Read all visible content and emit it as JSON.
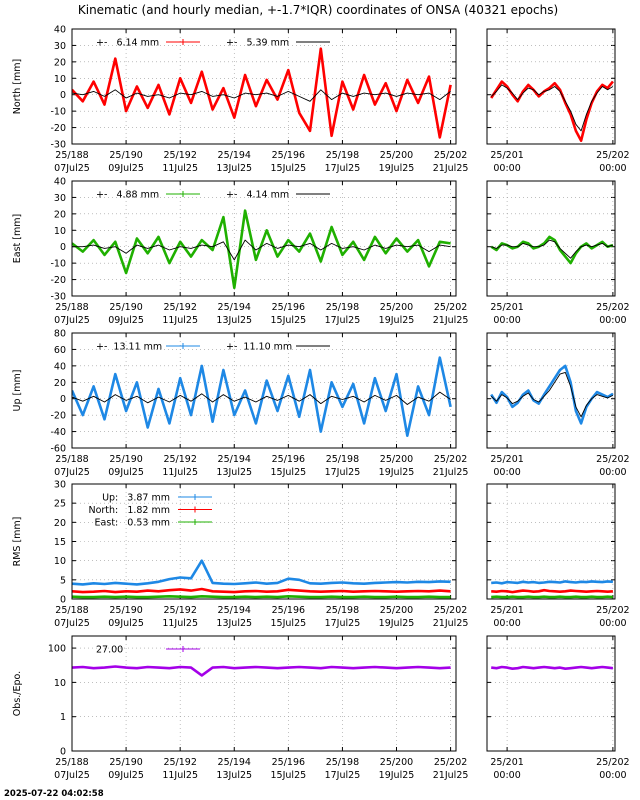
{
  "title": "Kinematic (and hourly median, +-1.7*IQR) coordinates of ONSA (40321 epochs)",
  "footer": "2025-07-22 04:02:58",
  "chart_data": {
    "type": "line",
    "grid": true,
    "x": [
      188,
      188.4,
      188.8,
      189.2,
      189.6,
      190,
      190.4,
      190.8,
      191.2,
      191.6,
      192,
      192.4,
      192.8,
      193.2,
      193.6,
      194,
      194.4,
      194.8,
      195.2,
      195.6,
      196,
      196.4,
      196.8,
      197.2,
      197.6,
      198,
      198.4,
      198.8,
      199.2,
      199.6,
      200,
      200.4,
      200.8,
      201.2,
      201.6,
      202
    ],
    "xlim": [
      188,
      202.2
    ],
    "xticks": [
      {
        "value": 188,
        "label": "25/188",
        "date": "07Jul25"
      },
      {
        "value": 190,
        "label": "25/190",
        "date": "09Jul25"
      },
      {
        "value": 192,
        "label": "25/192",
        "date": "11Jul25"
      },
      {
        "value": 194,
        "label": "25/194",
        "date": "13Jul25"
      },
      {
        "value": 196,
        "label": "25/196",
        "date": "15Jul25"
      },
      {
        "value": 198,
        "label": "25/198",
        "date": "17Jul25"
      },
      {
        "value": 200,
        "label": "25/200",
        "date": "19Jul25"
      },
      {
        "value": 202,
        "label": "25/202",
        "date": "21Jul25"
      }
    ],
    "zoom_x": [
      200.85,
      200.9,
      200.95,
      201,
      201.05,
      201.1,
      201.15,
      201.2,
      201.25,
      201.3,
      201.35,
      201.4,
      201.45,
      201.5,
      201.55,
      201.6,
      201.65,
      201.7,
      201.75,
      201.8,
      201.85,
      201.9,
      201.95,
      202
    ],
    "zoom_xlim": [
      200.81,
      202.02
    ],
    "zoom_xticks": [
      {
        "value": 201,
        "label": "25/201",
        "date": "00:00"
      },
      {
        "value": 202,
        "label": "25/202",
        "date": "00:00"
      }
    ],
    "panels": [
      {
        "ylabel": "North [mm]",
        "ylim": [
          -30,
          40
        ],
        "yticks": [
          -30,
          -20,
          -10,
          0,
          10,
          20,
          30,
          40
        ],
        "series": [
          {
            "name": "+-   6.14 mm",
            "color": "#ff0000",
            "values": [
              3,
              -4,
              8,
              -6,
              22,
              -10,
              5,
              -8,
              6,
              -12,
              10,
              -5,
              14,
              -9,
              4,
              -14,
              12,
              -7,
              9,
              -3,
              15,
              -11,
              -22,
              28,
              -25,
              8,
              -9,
              12,
              -6,
              7,
              -10,
              9,
              -5,
              11,
              -26,
              6
            ],
            "zoom_values": [
              -2,
              3,
              8,
              5,
              0,
              -4,
              2,
              6,
              3,
              -1,
              2,
              4,
              7,
              3,
              -5,
              -12,
              -22,
              -28,
              -15,
              -5,
              2,
              6,
              4,
              8
            ]
          },
          {
            "name": "+-   5.39 mm",
            "color": "#000000",
            "values": [
              1,
              0,
              2,
              -1,
              3,
              -2,
              1,
              -1,
              0,
              -2,
              1,
              0,
              2,
              -1,
              0,
              -2,
              1,
              0,
              1,
              -1,
              2,
              -1,
              -4,
              3,
              -3,
              1,
              -1,
              1,
              0,
              1,
              -1,
              1,
              0,
              1,
              -3,
              2
            ],
            "zoom_values": [
              -1,
              2,
              6,
              4,
              1,
              -3,
              1,
              4,
              3,
              0,
              2,
              3,
              5,
              2,
              -4,
              -10,
              -18,
              -22,
              -12,
              -4,
              1,
              5,
              3,
              5
            ]
          }
        ]
      },
      {
        "ylabel": "East [mm]",
        "ylim": [
          -30,
          40
        ],
        "yticks": [
          -30,
          -20,
          -10,
          0,
          10,
          20,
          30,
          40
        ],
        "series": [
          {
            "name": "+-   4.88 mm",
            "color": "#1fb000",
            "values": [
              2,
              -3,
              4,
              -5,
              3,
              -16,
              5,
              -4,
              6,
              -10,
              3,
              -6,
              4,
              -2,
              18,
              -25,
              22,
              -8,
              10,
              -6,
              4,
              -3,
              8,
              -9,
              12,
              -5,
              3,
              -8,
              6,
              -4,
              5,
              -3,
              4,
              -12,
              3,
              2
            ],
            "zoom_values": [
              0,
              -2,
              2,
              1,
              -1,
              0,
              3,
              2,
              -1,
              0,
              2,
              6,
              4,
              -2,
              -6,
              -10,
              -4,
              0,
              2,
              -1,
              1,
              3,
              0,
              1
            ]
          },
          {
            "name": "+-   4.14 mm",
            "color": "#000000",
            "values": [
              0,
              0,
              1,
              -1,
              0,
              -4,
              1,
              -1,
              1,
              -2,
              0,
              -1,
              1,
              0,
              3,
              -8,
              4,
              -2,
              2,
              -1,
              1,
              0,
              2,
              -2,
              2,
              -1,
              0,
              -2,
              1,
              -1,
              1,
              0,
              1,
              -3,
              1,
              0
            ],
            "zoom_values": [
              0,
              -1,
              1,
              1,
              0,
              0,
              2,
              1,
              0,
              0,
              1,
              4,
              3,
              -1,
              -4,
              -7,
              -3,
              0,
              1,
              0,
              1,
              2,
              0,
              1
            ]
          }
        ]
      },
      {
        "ylabel": "Up [mm]",
        "ylim": [
          -60,
          80
        ],
        "yticks": [
          -60,
          -40,
          -20,
          0,
          20,
          40,
          60,
          80
        ],
        "series": [
          {
            "name": "+-  13.11 mm",
            "color": "#1e88e5",
            "values": [
              10,
              -20,
              15,
              -25,
              30,
              -15,
              20,
              -35,
              12,
              -30,
              25,
              -20,
              40,
              -28,
              35,
              -20,
              10,
              -30,
              22,
              -15,
              28,
              -22,
              35,
              -40,
              20,
              -10,
              18,
              -30,
              25,
              -15,
              30,
              -45,
              15,
              -20,
              50,
              -10
            ],
            "zoom_values": [
              5,
              -5,
              8,
              2,
              -10,
              -5,
              5,
              10,
              -2,
              -6,
              5,
              15,
              25,
              35,
              40,
              20,
              -15,
              -30,
              -10,
              0,
              8,
              5,
              2,
              6
            ]
          },
          {
            "name": "+-  11.10 mm",
            "color": "#000000",
            "values": [
              2,
              -3,
              3,
              -4,
              5,
              -2,
              3,
              -5,
              2,
              -4,
              4,
              -3,
              6,
              -4,
              5,
              -3,
              2,
              -4,
              3,
              -2,
              4,
              -3,
              5,
              -6,
              3,
              -1,
              3,
              -4,
              4,
              -2,
              4,
              -7,
              2,
              -3,
              8,
              -1
            ],
            "zoom_values": [
              3,
              -3,
              5,
              1,
              -6,
              -3,
              3,
              7,
              -1,
              -4,
              3,
              10,
              20,
              30,
              32,
              15,
              -10,
              -22,
              -8,
              0,
              5,
              3,
              1,
              4
            ]
          }
        ]
      },
      {
        "ylabel": "RMS [mm]",
        "ylim": [
          0,
          30
        ],
        "yticks": [
          0,
          5,
          10,
          15,
          20,
          25,
          30
        ],
        "series": [
          {
            "name": "Up:   3.87 mm",
            "color": "#1e88e5",
            "values": [
              4,
              3.8,
              4.1,
              3.9,
              4.2,
              4,
              3.8,
              4.1,
              4.5,
              5.2,
              5.6,
              5.4,
              10,
              4.2,
              4,
              3.9,
              4.1,
              4.3,
              4,
              4.2,
              5.3,
              5,
              4.1,
              4,
              4.2,
              4.3,
              4.1,
              4,
              4.2,
              4.3,
              4.4,
              4.3,
              4.5,
              4.4,
              4.6,
              4.5
            ],
            "zoom_values": [
              4.2,
              4.3,
              4.1,
              4.4,
              4.3,
              4.2,
              4.5,
              4.3,
              4.4,
              4.2,
              4.3,
              4.5,
              4.4,
              4.3,
              4.6,
              4.4,
              4.3,
              4.5,
              4.4,
              4.6,
              4.5,
              4.4,
              4.6,
              4.5
            ]
          },
          {
            "name": "North:   1.82 mm",
            "color": "#ff0000",
            "values": [
              2,
              1.8,
              1.9,
              2.1,
              1.8,
              2,
              1.9,
              2.2,
              2,
              2.3,
              2.5,
              2.2,
              2.6,
              2,
              1.9,
              1.8,
              2,
              2.1,
              1.9,
              2,
              2.4,
              2.2,
              2,
              1.9,
              2,
              2.1,
              1.9,
              2,
              2.1,
              2,
              1.9,
              2,
              2.1,
              2,
              2.2,
              2
            ],
            "zoom_values": [
              2,
              1.9,
              2.1,
              2,
              1.8,
              2,
              2.2,
              2.1,
              1.9,
              2,
              2.3,
              2.1,
              2,
              1.9,
              2,
              2.2,
              2.1,
              2,
              1.9,
              2,
              2.1,
              2,
              1.9,
              2
            ]
          },
          {
            "name": "East:   0.53 mm",
            "color": "#1fb000",
            "values": [
              0.6,
              0.5,
              0.5,
              0.6,
              0.5,
              0.6,
              0.5,
              0.5,
              0.6,
              0.7,
              0.6,
              0.5,
              0.7,
              0.6,
              0.5,
              0.5,
              0.6,
              0.5,
              0.6,
              0.5,
              0.7,
              0.6,
              0.5,
              0.5,
              0.6,
              0.5,
              0.5,
              0.6,
              0.5,
              0.5,
              0.6,
              0.5,
              0.5,
              0.6,
              0.5,
              0.5
            ],
            "zoom_values": [
              0.5,
              0.6,
              0.5,
              0.5,
              0.6,
              0.5,
              0.5,
              0.6,
              0.5,
              0.5,
              0.6,
              0.5,
              0.5,
              0.6,
              0.5,
              0.5,
              0.6,
              0.5,
              0.5,
              0.6,
              0.5,
              0.5,
              0.6,
              0.5
            ]
          }
        ]
      },
      {
        "ylabel": "Obs./Epo.",
        "log": true,
        "ylim": [
          0.1,
          225
        ],
        "yticks": [
          {
            "value": 0.1,
            "label": "0"
          },
          1,
          10,
          100
        ],
        "series": [
          {
            "name": "27.00",
            "color": "#a400e8",
            "values": [
              27,
              28,
              26,
              27,
              29,
              27,
              26,
              28,
              27,
              26,
              28,
              27,
              16,
              27,
              28,
              26,
              27,
              28,
              27,
              26,
              27,
              28,
              27,
              26,
              28,
              27,
              26,
              27,
              28,
              27,
              26,
              27,
              28,
              27,
              26,
              27
            ],
            "zoom_values": [
              27,
              26,
              28,
              27,
              25,
              26,
              28,
              27,
              26,
              27,
              28,
              27,
              26,
              27,
              25,
              26,
              27,
              28,
              27,
              26,
              27,
              28,
              27,
              26
            ]
          }
        ]
      }
    ]
  }
}
